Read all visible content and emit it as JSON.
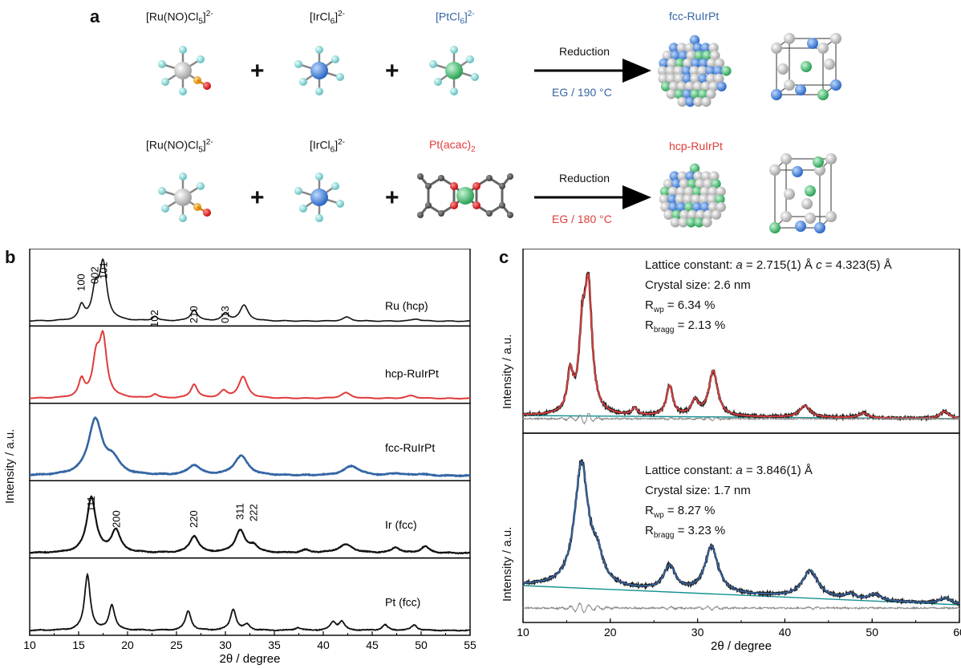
{
  "colors": {
    "fcc": "#3465a4",
    "hcp": "#e03c3c",
    "ru_atom": "#c8c8c8",
    "ir_atom": "#3b7fe0",
    "pt_atom": "#3fba6a",
    "cl_atom": "#86d4d4",
    "o_atom": "#e00000",
    "n_atom": "#f0a020",
    "background_line": "#149090",
    "difference": "#888888"
  },
  "panel_a": {
    "letter": "a",
    "row1": {
      "reactant1": "[Ru(NO)Cl5]2-",
      "reactant2": "[IrCl6]2-",
      "reactant3": "[PtCl6]2-",
      "reaction": "Reduction",
      "condition": "EG / 190 °C",
      "product": "fcc-RuIrPt"
    },
    "row2": {
      "reactant1": "[Ru(NO)Cl5]2-",
      "reactant2": "[IrCl6]2-",
      "reactant3": "Pt(acac)2",
      "reaction": "Reduction",
      "condition": "EG / 180 °C",
      "product": "hcp-RuIrPt"
    },
    "plus": "+"
  },
  "panel_b": {
    "letter": "b",
    "ylabel": "Intensity  / a.u.",
    "xlabel": "2θ / degree",
    "traces": [
      "Ru (hcp)",
      "hcp-RuIrPt",
      "fcc-RuIrPt",
      "Ir (fcc)",
      "Pt (fcc)"
    ],
    "hcp_indices": [
      "100",
      "002",
      "101",
      "102",
      "210",
      "013"
    ],
    "fcc_indices": [
      "111",
      "200",
      "220",
      "311",
      "222"
    ]
  },
  "panel_c": {
    "letter": "c",
    "ylabel": "Intensity  / a.u.",
    "xlabel": "2θ / degree",
    "top": {
      "lattice_prefix": "Lattice constant: ",
      "lattice_a": "a",
      "lattice_a_val": " = 2.715(1) Å ",
      "lattice_c": "c",
      "lattice_c_val": " = 4.323(5) Å",
      "crystal_size": "Crystal size: 2.6 nm",
      "rwp": " = 6.34 %",
      "rbragg": " = 2.13 %"
    },
    "bottom": {
      "lattice_prefix": "Lattice constant: ",
      "lattice_a": "a",
      "lattice_a_val": " = 3.846(1) Å",
      "crystal_size": "Crystal size: 1.7 nm",
      "rwp": " = 8.27 %",
      "rbragg": " = 3.23 %"
    },
    "r_symbol": "R",
    "wp_sub": "wp",
    "bragg_sub": "bragg"
  },
  "chart_data": [
    {
      "type": "line",
      "panel": "b",
      "xlabel": "2θ / degree",
      "ylabel": "Intensity  / a.u.",
      "xlim": [
        10,
        55
      ],
      "xticks": [
        10,
        15,
        20,
        25,
        30,
        35,
        40,
        45,
        50,
        55
      ],
      "series": [
        {
          "name": "Ru (hcp)",
          "peaks": [
            [
              15.3,
              0.25,
              0.35
            ],
            [
              16.7,
              0.5,
              0.4
            ],
            [
              17.5,
              1.0,
              0.45
            ],
            [
              22.8,
              0.08,
              0.3
            ],
            [
              26.8,
              0.2,
              0.4
            ],
            [
              30.0,
              0.13,
              0.4
            ],
            [
              31.9,
              0.28,
              0.5
            ],
            [
              42.4,
              0.07,
              0.5
            ],
            [
              49.5,
              0.04,
              0.5
            ]
          ]
        },
        {
          "name": "hcp-RuIrPt",
          "peaks": [
            [
              15.3,
              0.3,
              0.35
            ],
            [
              16.8,
              0.65,
              0.45
            ],
            [
              17.5,
              1.0,
              0.45
            ],
            [
              22.8,
              0.07,
              0.35
            ],
            [
              26.8,
              0.25,
              0.4
            ],
            [
              29.8,
              0.12,
              0.45
            ],
            [
              31.8,
              0.38,
              0.55
            ],
            [
              42.3,
              0.1,
              0.6
            ],
            [
              49.0,
              0.05,
              0.6
            ]
          ]
        },
        {
          "name": "fcc-RuIrPt",
          "peaks": [
            [
              16.7,
              1.0,
              0.85
            ],
            [
              18.5,
              0.25,
              0.8
            ],
            [
              26.8,
              0.18,
              0.75
            ],
            [
              31.6,
              0.35,
              0.85
            ],
            [
              42.9,
              0.17,
              1.0
            ],
            [
              47.5,
              0.04,
              0.7
            ],
            [
              50.0,
              0.03,
              0.7
            ]
          ]
        },
        {
          "name": "Ir (fcc)",
          "peaks": [
            [
              16.3,
              1.0,
              0.55
            ],
            [
              18.8,
              0.4,
              0.55
            ],
            [
              26.8,
              0.3,
              0.55
            ],
            [
              31.5,
              0.4,
              0.6
            ],
            [
              32.9,
              0.12,
              0.5
            ],
            [
              38.2,
              0.05,
              0.5
            ],
            [
              42.3,
              0.15,
              0.9
            ],
            [
              47.4,
              0.1,
              0.5
            ],
            [
              50.4,
              0.12,
              0.5
            ]
          ]
        },
        {
          "name": "Pt (fcc)",
          "peaks": [
            [
              15.9,
              1.0,
              0.35
            ],
            [
              18.4,
              0.45,
              0.35
            ],
            [
              26.2,
              0.35,
              0.35
            ],
            [
              30.8,
              0.38,
              0.35
            ],
            [
              32.2,
              0.1,
              0.35
            ],
            [
              37.4,
              0.05,
              0.35
            ],
            [
              41.0,
              0.15,
              0.35
            ],
            [
              41.9,
              0.15,
              0.35
            ],
            [
              46.3,
              0.1,
              0.35
            ],
            [
              49.3,
              0.1,
              0.35
            ]
          ]
        }
      ]
    },
    {
      "type": "line",
      "panel": "c",
      "xlabel": "2θ / degree",
      "ylabel": "Intensity  / a.u.",
      "xlim": [
        10,
        60
      ],
      "xticks": [
        10,
        20,
        30,
        40,
        50,
        60
      ],
      "series": [
        {
          "name": "hcp-RuIrPt",
          "peaks": [
            [
              15.4,
              0.32,
              0.4
            ],
            [
              16.8,
              0.6,
              0.45
            ],
            [
              17.5,
              1.0,
              0.5
            ],
            [
              22.8,
              0.06,
              0.35
            ],
            [
              26.8,
              0.25,
              0.45
            ],
            [
              29.7,
              0.12,
              0.5
            ],
            [
              31.8,
              0.38,
              0.6
            ],
            [
              42.3,
              0.1,
              0.7
            ],
            [
              49.0,
              0.04,
              0.6
            ],
            [
              58.3,
              0.06,
              0.6
            ]
          ]
        },
        {
          "name": "fcc-RuIrPt",
          "peaks": [
            [
              16.7,
              1.0,
              0.95
            ],
            [
              18.5,
              0.2,
              0.8
            ],
            [
              26.8,
              0.2,
              0.8
            ],
            [
              31.6,
              0.38,
              0.9
            ],
            [
              42.9,
              0.22,
              1.1
            ],
            [
              47.5,
              0.04,
              0.7
            ],
            [
              50.3,
              0.05,
              0.8
            ],
            [
              58.4,
              0.05,
              0.8
            ]
          ]
        }
      ]
    }
  ]
}
